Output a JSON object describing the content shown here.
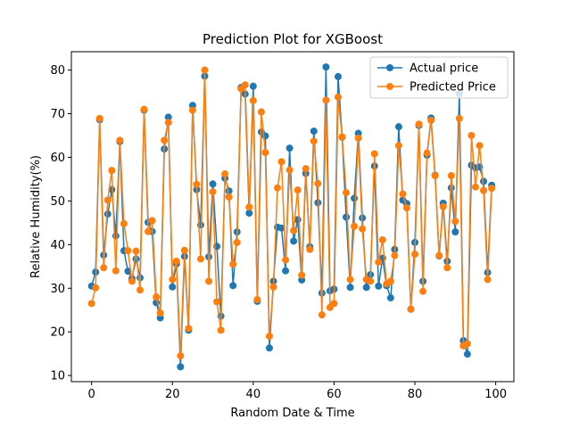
{
  "chart_data": {
    "type": "line",
    "title": "Prediction Plot for XGBoost",
    "xlabel": "Random Date & Time",
    "ylabel": "Relative Humidity(%)",
    "xlim": [
      -5,
      104.5
    ],
    "ylim": [
      8.6,
      84.2
    ],
    "xticks": [
      0,
      20,
      40,
      60,
      80,
      100
    ],
    "yticks": [
      10,
      20,
      30,
      40,
      50,
      60,
      70,
      80
    ],
    "grid": false,
    "legend_position": "top-right",
    "markers": true,
    "series": [
      {
        "name": "Actual price",
        "color": "#1f77b4",
        "values": [
          30.5,
          33.7,
          68.6,
          37.6,
          47.0,
          52.6,
          42.0,
          63.6,
          38.6,
          33.9,
          32.2,
          36.7,
          32.4,
          70.8,
          45.1,
          43.0,
          26.7,
          23.2,
          61.9,
          69.2,
          30.3,
          35.6,
          12.0,
          37.3,
          20.4,
          71.9,
          52.6,
          44.5,
          78.6,
          37.2,
          53.9,
          39.6,
          23.6,
          55.2,
          52.3,
          30.6,
          42.9,
          76.0,
          74.5,
          47.2,
          76.3,
          27.0,
          65.8,
          64.9,
          16.3,
          31.6,
          44.0,
          43.8,
          34.0,
          62.1,
          40.8,
          45.7,
          31.9,
          56.3,
          39.5,
          66.0,
          49.6,
          28.9,
          80.7,
          29.4,
          29.8,
          78.5,
          64.6,
          46.3,
          30.2,
          50.6,
          65.5,
          46.1,
          30.2,
          33.1,
          58.0,
          30.5,
          36.9,
          30.6,
          27.8,
          38.9,
          67.0,
          50.2,
          49.4,
          25.2,
          40.5,
          67.3,
          31.6,
          60.5,
          69.0,
          55.9,
          37.4,
          49.5,
          36.2,
          53.0,
          42.9,
          74.6,
          18.0,
          14.9,
          58.2,
          57.6,
          57.8,
          54.5,
          33.6,
          53.6
        ]
      },
      {
        "name": "Predicted Price",
        "color": "#ff7f0e",
        "values": [
          26.5,
          30.1,
          68.9,
          34.7,
          50.2,
          57.0,
          34.0,
          63.9,
          44.8,
          38.6,
          31.6,
          38.5,
          29.6,
          71.0,
          43.0,
          45.5,
          28.0,
          24.3,
          63.9,
          68.0,
          32.0,
          36.2,
          14.5,
          38.7,
          20.8,
          70.8,
          53.8,
          36.7,
          80.0,
          31.6,
          52.1,
          26.9,
          20.4,
          56.2,
          50.9,
          35.5,
          40.5,
          75.7,
          76.6,
          48.6,
          73.0,
          27.4,
          70.4,
          61.1,
          19.0,
          30.3,
          53.0,
          59.0,
          36.5,
          57.1,
          43.2,
          52.5,
          33.0,
          57.4,
          38.9,
          63.7,
          54.0,
          23.9,
          73.1,
          25.6,
          26.5,
          73.8,
          64.7,
          51.9,
          32.0,
          44.2,
          64.4,
          43.6,
          32.0,
          31.6,
          60.8,
          36.0,
          41.1,
          31.0,
          31.6,
          37.5,
          62.7,
          51.6,
          48.4,
          25.2,
          37.8,
          67.6,
          29.3,
          61.0,
          68.5,
          55.8,
          37.5,
          48.7,
          34.7,
          55.8,
          45.3,
          68.9,
          16.8,
          17.3,
          65.0,
          53.2,
          62.7,
          52.4,
          32.0,
          52.9
        ]
      }
    ]
  }
}
